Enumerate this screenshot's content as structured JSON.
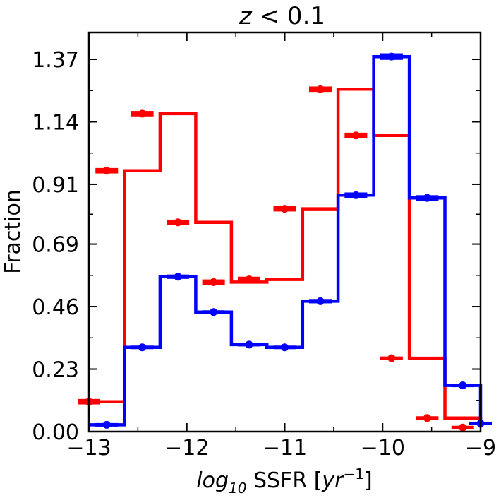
{
  "chart_data": {
    "type": "histogram-step",
    "title": "z < 0.1",
    "xlabel": "log10 SSFR [yr^-1]",
    "ylabel": "Fraction",
    "xlim": [
      -13,
      -9
    ],
    "ylim": [
      0.0,
      1.5
    ],
    "xticks": [
      -13,
      -12,
      -11,
      -10,
      -9
    ],
    "xtick_labels": [
      "−13",
      "−12",
      "−11",
      "−10",
      "−9"
    ],
    "yticks": [
      0.0,
      0.23,
      0.46,
      0.69,
      0.91,
      1.14,
      1.37
    ],
    "ytick_labels": [
      "0.00",
      "0.23",
      "0.46",
      "0.69",
      "0.91",
      "1.14",
      "1.37"
    ],
    "bin_edges": [
      -13.0,
      -12.636,
      -12.273,
      -11.909,
      -11.545,
      -11.182,
      -10.818,
      -10.455,
      -10.091,
      -9.727,
      -9.364,
      -9.0
    ],
    "series": [
      {
        "name": "red",
        "color": "#ff0000",
        "values": [
          0.11,
          0.96,
          1.17,
          0.77,
          0.55,
          0.56,
          0.82,
          1.26,
          1.09,
          0.27,
          0.05,
          0.015
        ],
        "errors": [
          0.01,
          0.01,
          0.01,
          0.01,
          0.01,
          0.01,
          0.01,
          0.01,
          0.01,
          0.005,
          0.005,
          0.005
        ],
        "points_x": [
          -13.0,
          -12.818,
          -12.455,
          -12.091,
          -11.727,
          -11.364,
          -11.0,
          -10.636,
          -10.273,
          -9.909,
          -9.545,
          -9.182
        ]
      },
      {
        "name": "blue",
        "color": "#0000ff",
        "values": [
          0.025,
          0.31,
          0.57,
          0.44,
          0.32,
          0.31,
          0.48,
          0.87,
          1.38,
          0.86,
          0.17,
          0.03
        ],
        "errors": [
          0.005,
          0.005,
          0.008,
          0.006,
          0.006,
          0.006,
          0.008,
          0.01,
          0.012,
          0.01,
          0.005,
          0.005
        ],
        "points_x": [
          -12.818,
          -12.455,
          -12.091,
          -11.727,
          -11.364,
          -11.0,
          -10.636,
          -10.273,
          -9.909,
          -9.545,
          -9.182,
          -9.0
        ]
      }
    ]
  }
}
